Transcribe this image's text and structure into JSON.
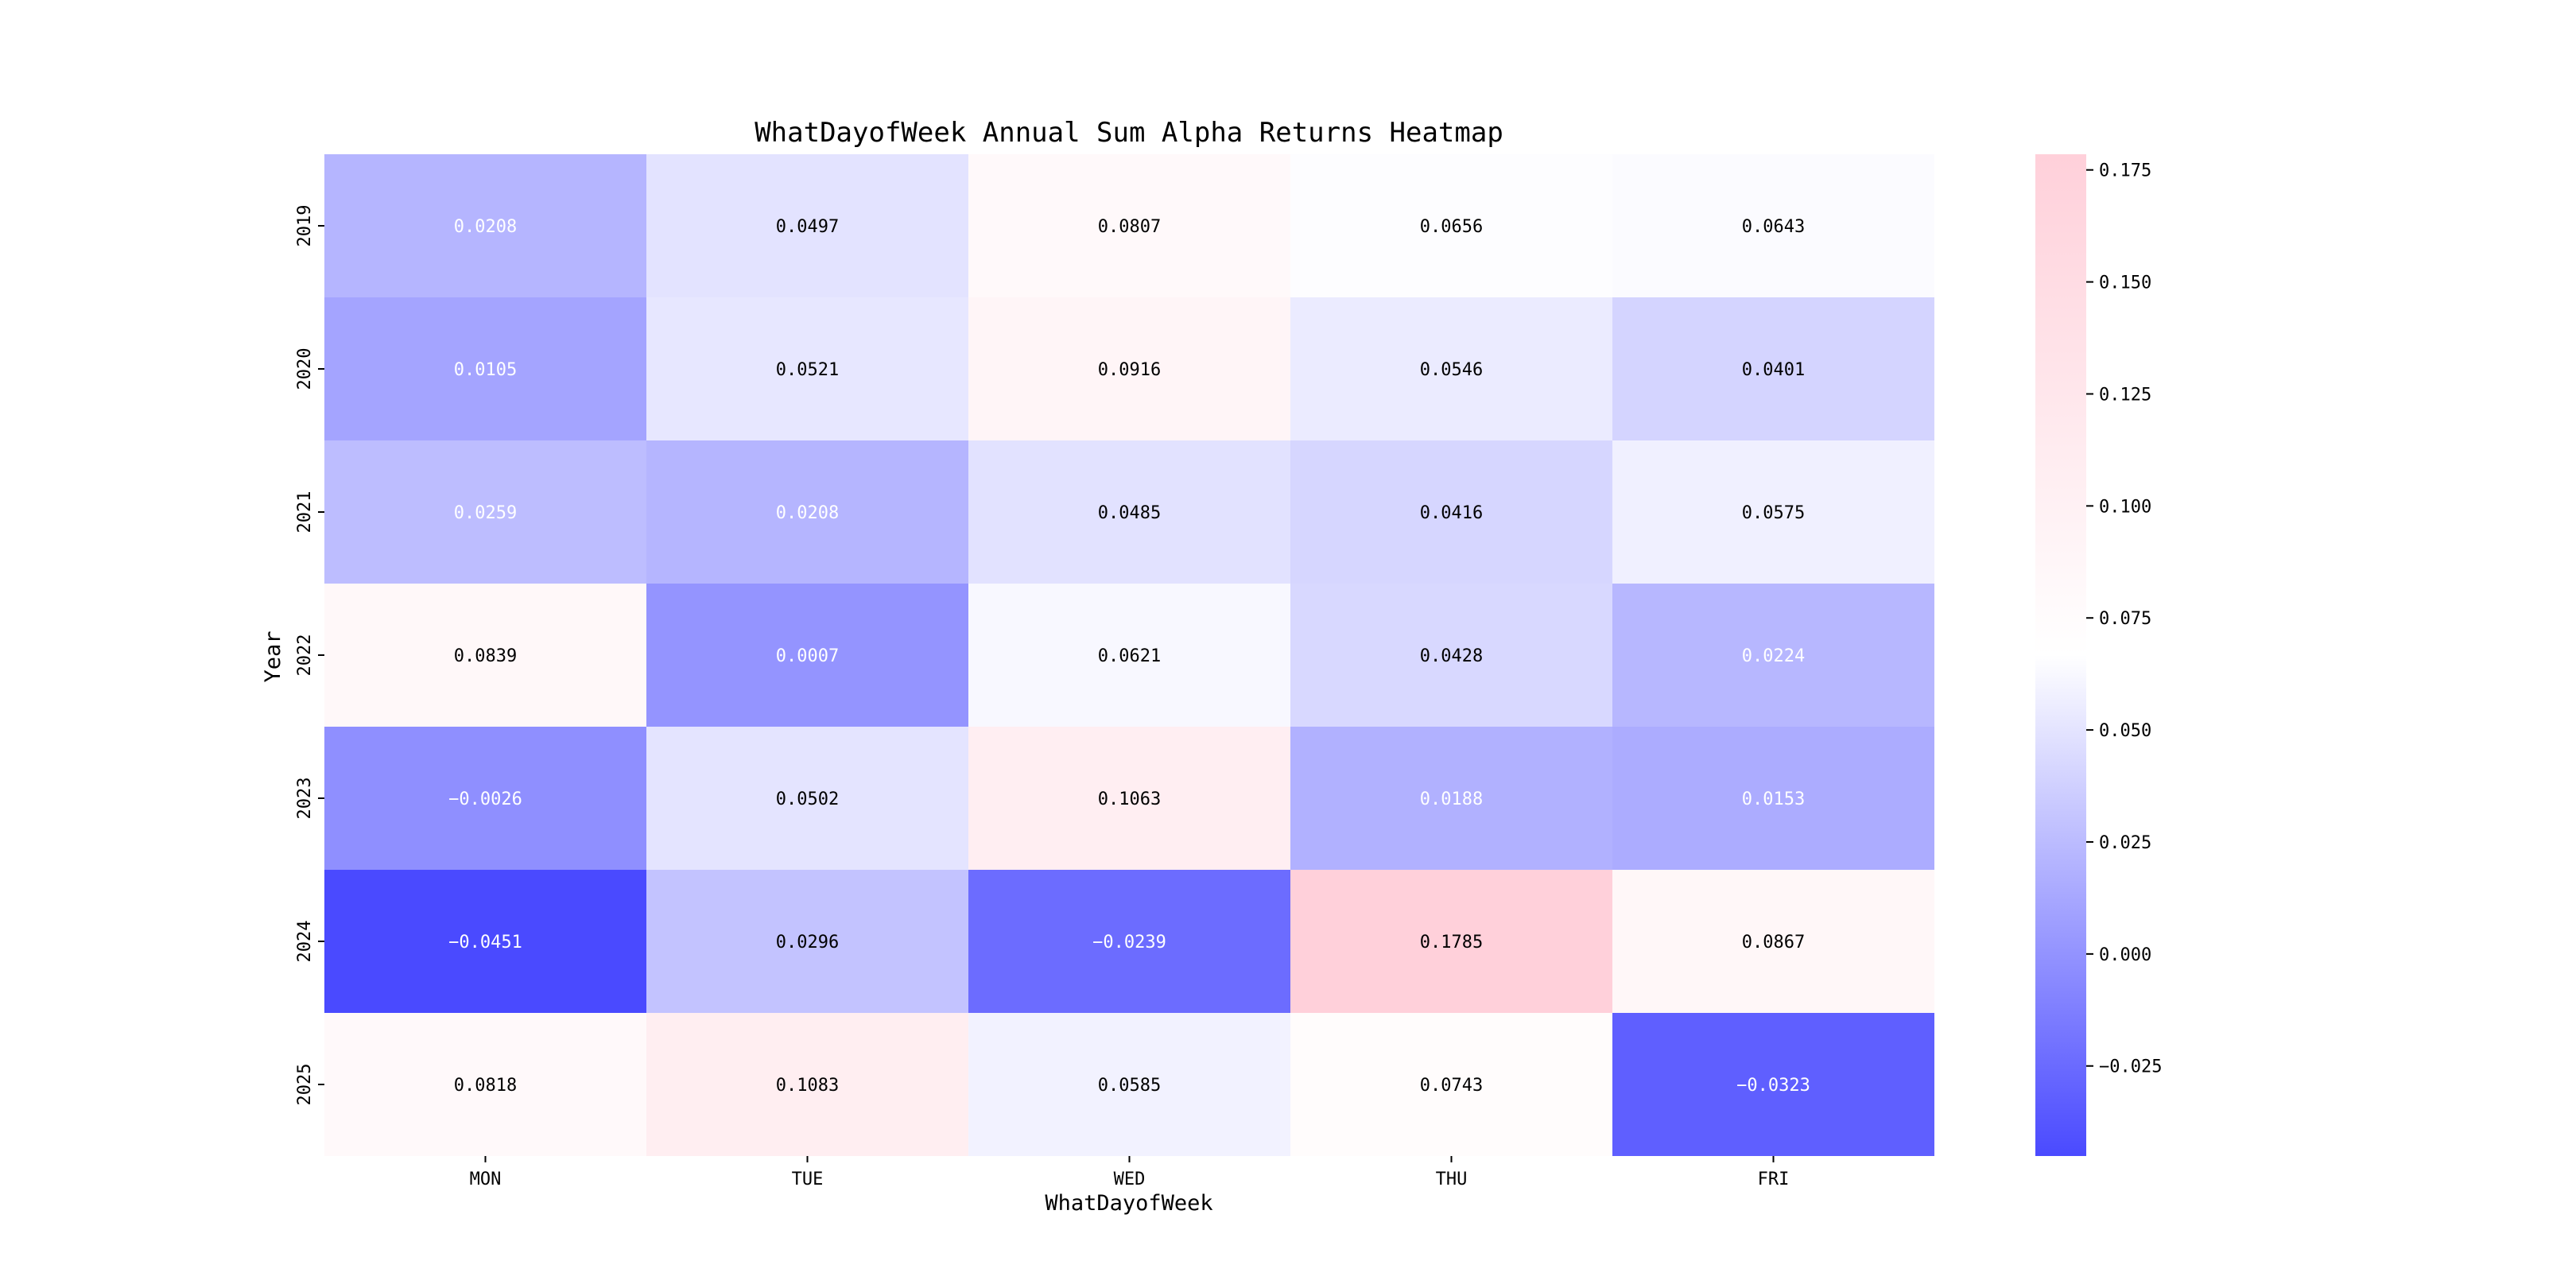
{
  "chart_data": {
    "type": "heatmap",
    "title": "WhatDayofWeek Annual Sum Alpha Returns Heatmap",
    "xlabel": "WhatDayofWeek",
    "ylabel": "Year",
    "x_categories": [
      "MON",
      "TUE",
      "WED",
      "THU",
      "FRI"
    ],
    "y_categories": [
      "2019",
      "2020",
      "2021",
      "2022",
      "2023",
      "2024",
      "2025"
    ],
    "values": [
      [
        0.0208,
        0.0497,
        0.0807,
        0.0656,
        0.0643
      ],
      [
        0.0105,
        0.0521,
        0.0916,
        0.0546,
        0.0401
      ],
      [
        0.0259,
        0.0208,
        0.0485,
        0.0416,
        0.0575
      ],
      [
        0.0839,
        0.0007,
        0.0621,
        0.0428,
        0.0224
      ],
      [
        -0.0026,
        0.0502,
        0.1063,
        0.0188,
        0.0153
      ],
      [
        -0.0451,
        0.0296,
        -0.0239,
        0.1785,
        0.0867
      ],
      [
        0.0818,
        0.1083,
        0.0585,
        0.0743,
        -0.0323
      ]
    ],
    "value_labels": [
      [
        "0.0208",
        "0.0497",
        "0.0807",
        "0.0656",
        "0.0643"
      ],
      [
        "0.0105",
        "0.0521",
        "0.0916",
        "0.0546",
        "0.0401"
      ],
      [
        "0.0259",
        "0.0208",
        "0.0485",
        "0.0416",
        "0.0575"
      ],
      [
        "0.0839",
        "0.0007",
        "0.0621",
        "0.0428",
        "0.0224"
      ],
      [
        "−0.0026",
        "0.0502",
        "0.1063",
        "0.0188",
        "0.0153"
      ],
      [
        "−0.0451",
        "0.0296",
        "−0.0239",
        "0.1785",
        "0.0867"
      ],
      [
        "0.0818",
        "0.1083",
        "0.0585",
        "0.0743",
        "−0.0323"
      ]
    ],
    "colorbar": {
      "vmin": -0.0451,
      "vmax": 0.1785,
      "ticks": [
        -0.025,
        0.0,
        0.025,
        0.05,
        0.075,
        0.1,
        0.125,
        0.15,
        0.175
      ],
      "tick_labels": [
        "−0.025",
        "0.000",
        "0.025",
        "0.050",
        "0.075",
        "0.100",
        "0.125",
        "0.150",
        "0.175"
      ],
      "colors": {
        "low": "#4a4aff",
        "mid": "#ffffff",
        "high": "#ffd0da"
      }
    },
    "text_colors": {
      "dark": "#000000",
      "light": "#ffffff"
    },
    "grid": false
  }
}
